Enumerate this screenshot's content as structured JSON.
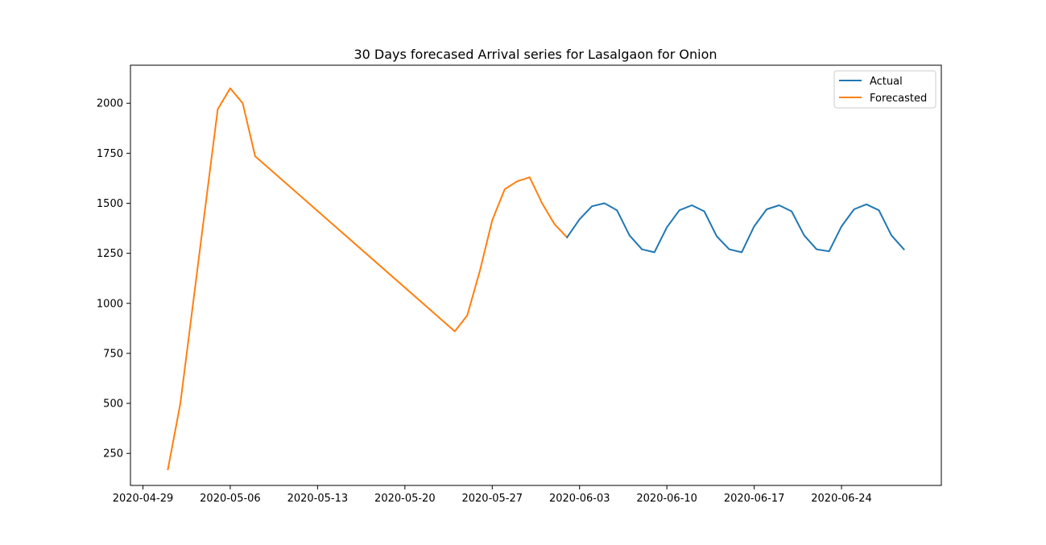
{
  "chart_data": {
    "type": "line",
    "title": "30 Days forecased Arrival series for Lasalgaon for Onion",
    "xlabel": "",
    "ylabel": "",
    "x_type": "date",
    "xlim": [
      "2020-04-28",
      "2020-07-02"
    ],
    "ylim": [
      90,
      2190
    ],
    "x_ticks": [
      "2020-04-29",
      "2020-05-06",
      "2020-05-13",
      "2020-05-20",
      "2020-05-27",
      "2020-06-03",
      "2020-06-10",
      "2020-06-17",
      "2020-06-24"
    ],
    "y_ticks": [
      250,
      500,
      750,
      1000,
      1250,
      1500,
      1750,
      2000
    ],
    "grid": false,
    "legend": {
      "placement": "top-right",
      "entries": [
        "Actual",
        "Forecasted"
      ]
    },
    "colors": {
      "Actual": "#1f77b4",
      "Forecasted": "#ff7f0e"
    },
    "series": [
      {
        "name": "Forecasted",
        "points": [
          [
            "2020-05-01",
            170
          ],
          [
            "2020-05-02",
            500
          ],
          [
            "2020-05-05",
            1970
          ],
          [
            "2020-05-06",
            2075
          ],
          [
            "2020-05-07",
            2000
          ],
          [
            "2020-05-08",
            1735
          ],
          [
            "2020-05-24",
            860
          ],
          [
            "2020-05-25",
            940
          ],
          [
            "2020-05-26",
            1160
          ],
          [
            "2020-05-27",
            1415
          ],
          [
            "2020-05-28",
            1570
          ],
          [
            "2020-05-29",
            1610
          ],
          [
            "2020-05-30",
            1630
          ],
          [
            "2020-05-31",
            1500
          ],
          [
            "2020-06-01",
            1395
          ],
          [
            "2020-06-02",
            1330
          ]
        ]
      },
      {
        "name": "Actual",
        "points": [
          [
            "2020-06-02",
            1330
          ],
          [
            "2020-06-03",
            1420
          ],
          [
            "2020-06-04",
            1485
          ],
          [
            "2020-06-05",
            1500
          ],
          [
            "2020-06-06",
            1465
          ],
          [
            "2020-06-07",
            1340
          ],
          [
            "2020-06-08",
            1270
          ],
          [
            "2020-06-09",
            1255
          ],
          [
            "2020-06-10",
            1380
          ],
          [
            "2020-06-11",
            1465
          ],
          [
            "2020-06-12",
            1490
          ],
          [
            "2020-06-13",
            1460
          ],
          [
            "2020-06-14",
            1335
          ],
          [
            "2020-06-15",
            1270
          ],
          [
            "2020-06-16",
            1255
          ],
          [
            "2020-06-17",
            1385
          ],
          [
            "2020-06-18",
            1470
          ],
          [
            "2020-06-19",
            1490
          ],
          [
            "2020-06-20",
            1460
          ],
          [
            "2020-06-21",
            1340
          ],
          [
            "2020-06-22",
            1270
          ],
          [
            "2020-06-23",
            1260
          ],
          [
            "2020-06-24",
            1385
          ],
          [
            "2020-06-25",
            1470
          ],
          [
            "2020-06-26",
            1495
          ],
          [
            "2020-06-27",
            1465
          ],
          [
            "2020-06-28",
            1340
          ],
          [
            "2020-06-29",
            1270
          ]
        ]
      }
    ]
  }
}
